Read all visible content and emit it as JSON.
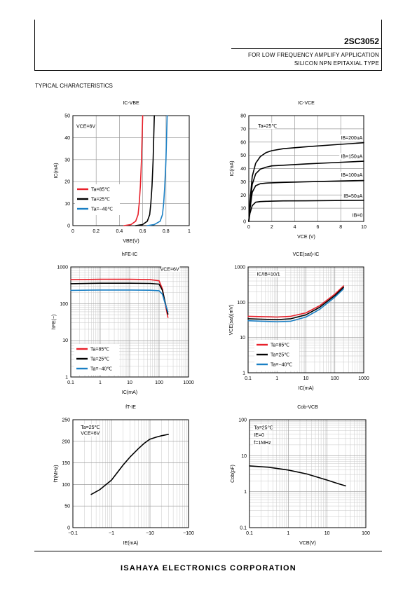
{
  "header": {
    "part_number": "2SC3052",
    "line1": "FOR LOW FREQUENCY AMPLIFY APPLICATION",
    "line2": "SILICON NPN EPITAXIAL TYPE"
  },
  "section_title": "TYPICAL CHARACTERISTICS",
  "footer": {
    "company": "ISAHAYA ELECTRONICS CORPORATION"
  },
  "colors": {
    "red": "#e8202a",
    "black": "#000000",
    "blue": "#1a7fc4"
  },
  "chart_data": [
    {
      "id": "ic-vbe",
      "type": "line",
      "title": "IC-VBE",
      "xlabel": "VBE(V)",
      "ylabel": "IC(mA)",
      "xscale": "linear",
      "yscale": "linear",
      "xlim": [
        0,
        1
      ],
      "ylim": [
        0,
        50
      ],
      "xticks": [
        0,
        0.2,
        0.4,
        0.6,
        0.8,
        1
      ],
      "xtick_labels": [
        "0",
        "0.2",
        "0.4",
        "0.6",
        "0.8",
        "1"
      ],
      "yticks": [
        0,
        10,
        20,
        30,
        40,
        50
      ],
      "ytick_labels": [
        "0",
        "10",
        "20",
        "30",
        "40",
        "50"
      ],
      "annotations": [
        {
          "text": "VCE=6V",
          "x": 0.03,
          "y": 45
        }
      ],
      "legend": "bottom-left",
      "series": [
        {
          "name": "Ta=85℃",
          "color": "red",
          "x": [
            0.44,
            0.5,
            0.54,
            0.56,
            0.57,
            0.58,
            0.59,
            0.6
          ],
          "y": [
            0,
            0.5,
            2,
            5,
            10,
            18,
            30,
            50
          ]
        },
        {
          "name": "Ta=25℃",
          "color": "black",
          "x": [
            0.54,
            0.6,
            0.64,
            0.66,
            0.67,
            0.68,
            0.69,
            0.7
          ],
          "y": [
            0,
            0.5,
            2,
            5,
            10,
            18,
            30,
            50
          ]
        },
        {
          "name": "Ta=−40℃",
          "color": "blue",
          "x": [
            0.64,
            0.7,
            0.75,
            0.77,
            0.78,
            0.79,
            0.8,
            0.81
          ],
          "y": [
            0,
            0.5,
            2,
            5,
            10,
            18,
            30,
            50
          ]
        }
      ]
    },
    {
      "id": "ic-vce",
      "type": "line",
      "title": "IC-VCE",
      "xlabel": "VCE (V)",
      "ylabel": "IC(mA)",
      "xscale": "linear",
      "yscale": "linear",
      "xlim": [
        0,
        10
      ],
      "ylim": [
        0,
        80
      ],
      "xticks": [
        0,
        2,
        4,
        6,
        8,
        10
      ],
      "xtick_labels": [
        "0",
        "2",
        "4",
        "6",
        "8",
        "10"
      ],
      "yticks": [
        0,
        10,
        20,
        30,
        40,
        50,
        60,
        70,
        80
      ],
      "ytick_labels": [
        "0",
        "10",
        "20",
        "30",
        "40",
        "50",
        "60",
        "70",
        "80"
      ],
      "annotations": [
        {
          "text": "Ta=25℃",
          "x": 0.8,
          "y": 72
        },
        {
          "text": "IB=200uA",
          "x": 9.9,
          "y": 63
        },
        {
          "text": "IB=150uA",
          "x": 9.9,
          "y": 49
        },
        {
          "text": "IB=100uA",
          "x": 9.9,
          "y": 35
        },
        {
          "text": "IB=50uA",
          "x": 9.9,
          "y": 19
        },
        {
          "text": "IB=0",
          "x": 9.9,
          "y": 4.5
        }
      ],
      "series": [
        {
          "name": "",
          "color": "black",
          "x": [
            0,
            0.1,
            0.3,
            0.6,
            1.0,
            1.5,
            2.0,
            3.0,
            5.0,
            7.5,
            10
          ],
          "y": [
            0,
            15,
            34,
            44,
            49,
            52,
            53.5,
            55,
            56.5,
            58,
            59.5
          ]
        },
        {
          "name": "",
          "color": "black",
          "x": [
            0,
            0.1,
            0.3,
            0.6,
            1.0,
            1.5,
            2.0,
            3.0,
            5.0,
            7.5,
            10
          ],
          "y": [
            0,
            12,
            28,
            36,
            39.5,
            41,
            42,
            42.5,
            43.5,
            44.5,
            45.5
          ]
        },
        {
          "name": "",
          "color": "black",
          "x": [
            0,
            0.1,
            0.3,
            0.6,
            1.0,
            1.5,
            2.0,
            3.0,
            5.0,
            7.5,
            10
          ],
          "y": [
            0,
            9,
            22,
            27,
            28.5,
            29,
            29.2,
            29.5,
            30,
            30.5,
            31
          ]
        },
        {
          "name": "",
          "color": "black",
          "x": [
            0,
            0.1,
            0.3,
            0.6,
            1.0,
            1.5,
            2.0,
            3.0,
            5.0,
            7.5,
            10
          ],
          "y": [
            0,
            6,
            12,
            14.5,
            15,
            15.2,
            15.3,
            15.5,
            15.6,
            15.8,
            16
          ]
        }
      ]
    },
    {
      "id": "hfe-ic",
      "type": "line",
      "title": "hFE-IC",
      "xlabel": "IC(mA)",
      "ylabel": "hFE(−)",
      "xscale": "log",
      "yscale": "log",
      "xlim": [
        0.1,
        1000
      ],
      "ylim": [
        1,
        1000
      ],
      "xticks": [
        0.1,
        1,
        10,
        100,
        1000
      ],
      "xtick_labels": [
        "0.1",
        "1",
        "10",
        "100",
        "1000"
      ],
      "yticks": [
        1,
        10,
        100,
        1000
      ],
      "ytick_labels": [
        "1",
        "10",
        "100",
        "1000"
      ],
      "annotations": [
        {
          "text": "VCE=6V",
          "x": 480,
          "y": 850
        }
      ],
      "legend": "bottom-left",
      "series": [
        {
          "name": "Ta=85℃",
          "color": "red",
          "x": [
            0.1,
            1,
            10,
            50,
            100,
            130,
            160,
            200
          ],
          "y": [
            450,
            460,
            460,
            450,
            420,
            250,
            100,
            42
          ]
        },
        {
          "name": "Ta=25℃",
          "color": "black",
          "x": [
            0.1,
            1,
            10,
            50,
            100,
            130,
            160,
            200
          ],
          "y": [
            350,
            360,
            360,
            355,
            340,
            230,
            110,
            52
          ]
        },
        {
          "name": "Ta=−40℃",
          "color": "blue",
          "x": [
            0.1,
            1,
            10,
            50,
            100,
            130,
            160,
            200
          ],
          "y": [
            230,
            235,
            235,
            232,
            225,
            180,
            100,
            60
          ]
        }
      ]
    },
    {
      "id": "vcesat-ic",
      "type": "line",
      "title": "VCE(sat)-IC",
      "xlabel": "IC(mA)",
      "ylabel": "VCE(sat)(mV)",
      "xscale": "log",
      "yscale": "log",
      "xlim": [
        0.1,
        1000
      ],
      "ylim": [
        1,
        1000
      ],
      "xticks": [
        0.1,
        1,
        10,
        100,
        1000
      ],
      "xtick_labels": [
        "0.1",
        "1",
        "10",
        "100",
        "1000"
      ],
      "yticks": [
        1,
        10,
        100,
        1000
      ],
      "ytick_labels": [
        "1",
        "10",
        "100",
        "1000"
      ],
      "annotations": [
        {
          "text": "IC/IB=10/1",
          "x": 0.2,
          "y": 620
        }
      ],
      "legend": "bottom-left",
      "series": [
        {
          "name": "Ta=85℃",
          "color": "red",
          "x": [
            0.1,
            0.3,
            1,
            3,
            10,
            30,
            100,
            200
          ],
          "y": [
            40,
            39,
            38,
            40,
            50,
            80,
            170,
            290
          ]
        },
        {
          "name": "Ta=25℃",
          "color": "black",
          "x": [
            0.1,
            0.3,
            1,
            3,
            10,
            30,
            100,
            200
          ],
          "y": [
            34,
            33,
            32,
            34,
            44,
            72,
            155,
            265
          ]
        },
        {
          "name": "Ta=−40℃",
          "color": "blue",
          "x": [
            0.1,
            0.3,
            1,
            3,
            10,
            30,
            100,
            200
          ],
          "y": [
            30,
            29,
            28,
            29,
            38,
            63,
            140,
            240
          ]
        }
      ]
    },
    {
      "id": "ft-ie",
      "type": "line",
      "title": "fT-IE",
      "xlabel": "IE(mA)",
      "ylabel": "fT(MHz)",
      "xscale": "log",
      "yscale": "linear",
      "xlim": [
        0.1,
        100
      ],
      "ylim": [
        0,
        250
      ],
      "xticks": [
        0.1,
        1,
        10,
        100
      ],
      "xtick_labels": [
        "−0.1",
        "−1",
        "−10",
        "−100"
      ],
      "yticks": [
        0,
        50,
        100,
        150,
        200,
        250
      ],
      "ytick_labels": [
        "0",
        "50",
        "100",
        "150",
        "200",
        "250"
      ],
      "annotations": [
        {
          "text": "Ta=25℃",
          "x": 0.16,
          "y": 232
        },
        {
          "text": "VCE=6V",
          "x": 0.16,
          "y": 218
        }
      ],
      "series": [
        {
          "name": "",
          "color": "black",
          "x": [
            0.3,
            0.5,
            1,
            2,
            3,
            5,
            7,
            10,
            15,
            20,
            30
          ],
          "y": [
            77,
            88,
            110,
            145,
            163,
            183,
            195,
            205,
            210,
            213,
            216
          ]
        }
      ]
    },
    {
      "id": "cob-vcb",
      "type": "line",
      "title": "Cob-VCB",
      "xlabel": "VCB(V)",
      "ylabel": "Cob(pF)",
      "xscale": "log",
      "yscale": "log",
      "xlim": [
        0.1,
        100
      ],
      "ylim": [
        0.1,
        100
      ],
      "xticks": [
        0.1,
        1,
        10,
        100
      ],
      "xtick_labels": [
        "0.1",
        "1",
        "10",
        "100"
      ],
      "yticks": [
        0.1,
        1,
        10,
        100
      ],
      "ytick_labels": [
        "0.1",
        "1",
        "10",
        "100"
      ],
      "annotations": [
        {
          "text": "Ta=25℃",
          "x": 0.13,
          "y": 60
        },
        {
          "text": "IE=0",
          "x": 0.13,
          "y": 37
        },
        {
          "text": "f=1MHz",
          "x": 0.13,
          "y": 23
        }
      ],
      "series": [
        {
          "name": "",
          "color": "black",
          "x": [
            0.1,
            0.3,
            1,
            3,
            10,
            20,
            30
          ],
          "y": [
            5.2,
            4.8,
            4.0,
            3.1,
            2.1,
            1.65,
            1.45
          ]
        }
      ]
    }
  ]
}
